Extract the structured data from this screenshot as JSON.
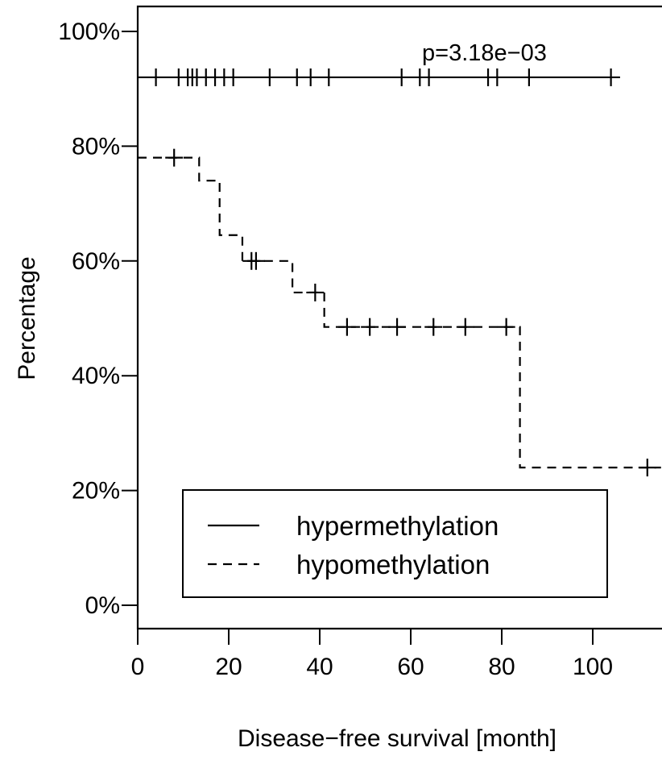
{
  "chart_data": {
    "type": "line",
    "title": "",
    "xlabel": "Disease−free survival [month]",
    "ylabel": "Percentage",
    "xlim": [
      0,
      115
    ],
    "ylim": [
      0,
      1
    ],
    "x_ticks": [
      0,
      20,
      40,
      60,
      80,
      100
    ],
    "x_tick_labels": [
      "0",
      "20",
      "40",
      "60",
      "80",
      "100"
    ],
    "y_ticks": [
      0,
      0.2,
      0.4,
      0.6,
      0.8,
      1.0
    ],
    "y_tick_labels": [
      "0%",
      "20%",
      "40%",
      "60%",
      "80%",
      "100%"
    ],
    "annotation": "p=3.18e−03",
    "grid": false,
    "legend_position": "bottom-left",
    "series": [
      {
        "name": "hypermethylation",
        "style": "solid",
        "color": "#000000",
        "steps": [
          [
            0,
            0.92
          ],
          [
            106,
            0.92
          ]
        ],
        "censor_times": [
          4,
          9,
          11,
          12,
          13,
          15,
          17,
          19,
          21,
          29,
          35,
          38,
          42,
          58,
          62,
          64,
          77,
          79,
          86,
          104
        ],
        "censor_values": [
          0.92,
          0.92,
          0.92,
          0.92,
          0.92,
          0.92,
          0.92,
          0.92,
          0.92,
          0.92,
          0.92,
          0.92,
          0.92,
          0.92,
          0.92,
          0.92,
          0.92,
          0.92,
          0.92,
          0.92
        ]
      },
      {
        "name": "hypomethylation",
        "style": "dashed",
        "color": "#000000",
        "steps": [
          [
            0,
            0.78
          ],
          [
            13.5,
            0.74
          ],
          [
            18,
            0.645
          ],
          [
            23,
            0.6
          ],
          [
            34,
            0.545
          ],
          [
            41,
            0.485
          ],
          [
            84,
            0.24
          ],
          [
            115,
            0.24
          ]
        ],
        "censor_times": [
          8,
          25,
          26,
          39,
          46,
          51,
          57,
          65,
          72,
          81,
          112
        ],
        "censor_values": [
          0.78,
          0.6,
          0.6,
          0.545,
          0.485,
          0.485,
          0.485,
          0.485,
          0.485,
          0.485,
          0.24
        ]
      }
    ]
  }
}
